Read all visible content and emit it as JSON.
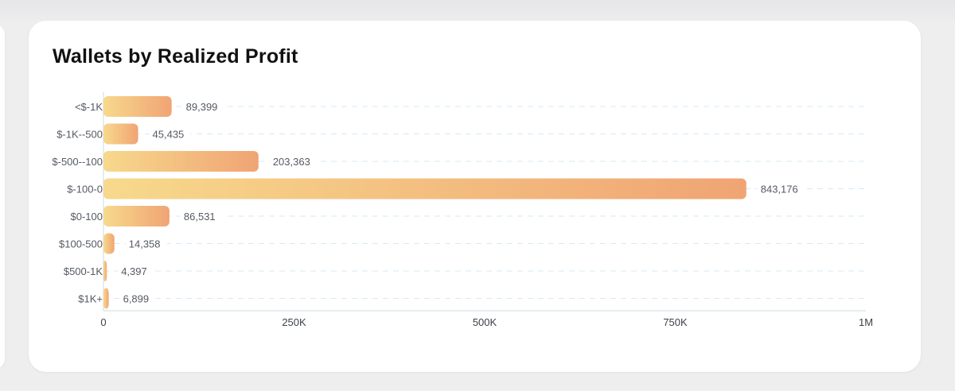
{
  "card": {
    "title": "Wallets by Realized Profit"
  },
  "chart_data": {
    "type": "bar",
    "orientation": "horizontal",
    "title": "Wallets by Realized Profit",
    "categories": [
      "<$-1K",
      "$-1K--500",
      "$-500--100",
      "$-100-0",
      "$0-100",
      "$100-500",
      "$500-1K",
      "$1K+"
    ],
    "values": [
      89399,
      45435,
      203363,
      843176,
      86531,
      14358,
      4397,
      6899
    ],
    "value_labels": [
      "89,399",
      "45,435",
      "203,363",
      "843,176",
      "86,531",
      "14,358",
      "4,397",
      "6,899"
    ],
    "xlim": [
      0,
      1000000
    ],
    "x_ticks": [
      0,
      250000,
      500000,
      750000,
      1000000
    ],
    "x_tick_labels": [
      "0",
      "250K",
      "500K",
      "750K",
      "1M"
    ],
    "grid": "horizontal dashed",
    "colors": {
      "bar_start": "#f7d98c",
      "bar_end": "#f0a474",
      "grid": "#d6e8f5",
      "axis": "#cfd8e3"
    }
  }
}
